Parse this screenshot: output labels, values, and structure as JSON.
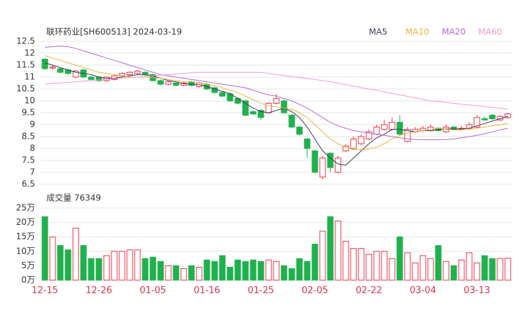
{
  "chart_data": [
    {
      "type": "candlestick",
      "title": "联环药业[SH600513] 2024-03-19",
      "up_color": "#e8334a",
      "down_color": "#1fb14d",
      "open": [
        11.75,
        11.38,
        11.35,
        11.3,
        11.0,
        11.3,
        11.0,
        11.0,
        10.85,
        10.9,
        11.05,
        11.1,
        11.15,
        11.2,
        11.1,
        10.85,
        10.7,
        10.75,
        10.65,
        10.8,
        10.6,
        10.7,
        10.55,
        10.35,
        10.3,
        10.1,
        10.0,
        9.55,
        9.6,
        9.5,
        9.9,
        10.0,
        9.4,
        8.9,
        8.4,
        7.9,
        6.8,
        7.8,
        7.0,
        7.9,
        8.0,
        8.2,
        8.4,
        8.6,
        8.8,
        8.8,
        9.1,
        8.3,
        8.7,
        8.75,
        8.75,
        8.85,
        8.7,
        8.9,
        8.8,
        8.85,
        8.9,
        9.25,
        9.4,
        9.2,
        9.3
      ],
      "high": [
        11.8,
        11.5,
        11.4,
        11.35,
        11.3,
        11.35,
        11.05,
        11.05,
        11.0,
        11.1,
        11.2,
        11.25,
        11.3,
        11.25,
        11.15,
        10.9,
        10.85,
        10.8,
        10.8,
        10.85,
        10.8,
        10.75,
        10.6,
        10.4,
        10.35,
        10.15,
        10.05,
        9.6,
        9.65,
        9.95,
        10.3,
        10.05,
        9.45,
        8.95,
        8.45,
        7.95,
        7.7,
        7.85,
        7.7,
        8.2,
        8.5,
        8.6,
        8.8,
        9.0,
        9.2,
        9.3,
        9.4,
        8.9,
        8.9,
        8.95,
        9.0,
        8.9,
        9.0,
        8.95,
        8.95,
        9.1,
        9.4,
        9.35,
        9.45,
        9.4,
        9.5
      ],
      "low": [
        11.3,
        11.3,
        11.15,
        11.1,
        10.95,
        10.95,
        10.85,
        10.8,
        10.8,
        10.85,
        11.0,
        11.05,
        11.1,
        11.05,
        10.8,
        10.65,
        10.65,
        10.6,
        10.6,
        10.6,
        10.55,
        10.45,
        10.3,
        10.15,
        9.95,
        9.85,
        9.35,
        9.4,
        9.2,
        9.45,
        9.85,
        9.45,
        8.85,
        8.55,
        7.6,
        6.95,
        6.7,
        7.0,
        6.95,
        7.85,
        7.95,
        8.15,
        8.35,
        8.55,
        8.75,
        8.75,
        8.55,
        8.25,
        8.65,
        8.7,
        8.7,
        8.7,
        8.65,
        8.75,
        8.75,
        8.8,
        8.85,
        9.15,
        9.2,
        9.15,
        9.25
      ],
      "close": [
        11.35,
        11.42,
        11.2,
        11.15,
        11.25,
        11.0,
        10.9,
        10.85,
        11.0,
        11.05,
        11.15,
        11.2,
        11.25,
        11.1,
        10.85,
        10.7,
        10.8,
        10.65,
        10.75,
        10.65,
        10.75,
        10.5,
        10.35,
        10.2,
        10.0,
        9.9,
        9.4,
        9.45,
        9.3,
        9.9,
        10.1,
        9.5,
        8.9,
        8.6,
        8.0,
        7.0,
        7.6,
        7.2,
        7.6,
        8.1,
        8.4,
        8.5,
        8.7,
        8.9,
        9.0,
        9.1,
        8.6,
        8.8,
        8.8,
        8.85,
        8.9,
        8.75,
        8.9,
        8.8,
        8.85,
        9.0,
        9.3,
        9.2,
        9.25,
        9.35,
        9.45
      ],
      "series": [
        {
          "name": "MA5",
          "color": "#3c3c5c",
          "values": [
            11.6,
            11.5,
            11.4,
            11.3,
            11.2,
            11.15,
            11.1,
            11.0,
            10.95,
            10.95,
            11.0,
            11.05,
            11.1,
            11.1,
            11.05,
            10.95,
            10.85,
            10.8,
            10.72,
            10.7,
            10.68,
            10.6,
            10.5,
            10.4,
            10.3,
            10.1,
            9.9,
            9.7,
            9.55,
            9.5,
            9.6,
            9.7,
            9.55,
            9.3,
            8.9,
            8.4,
            7.9,
            7.6,
            7.35,
            7.3,
            7.6,
            7.9,
            8.2,
            8.45,
            8.6,
            8.8,
            8.8,
            8.75,
            8.7,
            8.75,
            8.75,
            8.8,
            8.82,
            8.82,
            8.83,
            8.85,
            8.95,
            9.05,
            9.15,
            9.25,
            9.35
          ]
        },
        {
          "name": "MA10",
          "color": "#f0b43c",
          "values": [
            11.9,
            11.8,
            11.7,
            11.6,
            11.5,
            11.4,
            11.3,
            11.2,
            11.15,
            11.1,
            11.05,
            11.0,
            11.0,
            11.0,
            10.98,
            10.95,
            10.9,
            10.85,
            10.82,
            10.8,
            10.75,
            10.7,
            10.65,
            10.55,
            10.45,
            10.35,
            10.2,
            10.05,
            9.9,
            9.8,
            9.75,
            9.7,
            9.65,
            9.5,
            9.3,
            9.0,
            8.7,
            8.4,
            8.2,
            8.05,
            7.95,
            7.95,
            7.98,
            8.05,
            8.2,
            8.4,
            8.55,
            8.65,
            8.7,
            8.75,
            8.8,
            8.85,
            8.8,
            8.78,
            8.78,
            8.8,
            8.85,
            8.9,
            8.95,
            9.0,
            9.05
          ]
        },
        {
          "name": "MA20",
          "color": "#b068d8",
          "values": [
            12.25,
            12.28,
            12.3,
            12.28,
            12.2,
            12.1,
            12.0,
            11.9,
            11.8,
            11.7,
            11.6,
            11.5,
            11.4,
            11.3,
            11.2,
            11.1,
            11.05,
            11.0,
            10.95,
            10.9,
            10.85,
            10.8,
            10.75,
            10.7,
            10.65,
            10.6,
            10.55,
            10.45,
            10.35,
            10.25,
            10.2,
            10.1,
            10.0,
            9.85,
            9.7,
            9.5,
            9.3,
            9.1,
            8.95,
            8.85,
            8.75,
            8.7,
            8.65,
            8.6,
            8.55,
            8.5,
            8.45,
            8.4,
            8.38,
            8.37,
            8.37,
            8.37,
            8.38,
            8.4,
            8.45,
            8.5,
            8.55,
            8.62,
            8.7,
            8.78,
            8.85
          ]
        },
        {
          "name": "MA60",
          "color": "#f29ad0",
          "values": [
            10.7,
            10.73,
            10.75,
            10.78,
            10.8,
            10.83,
            10.85,
            10.88,
            10.9,
            10.93,
            10.95,
            10.98,
            11.0,
            11.03,
            11.05,
            11.08,
            11.1,
            11.13,
            11.15,
            11.18,
            11.2,
            11.2,
            11.2,
            11.2,
            11.2,
            11.2,
            11.2,
            11.2,
            11.2,
            11.15,
            11.1,
            11.06,
            11.02,
            10.98,
            10.94,
            10.9,
            10.85,
            10.8,
            10.74,
            10.68,
            10.62,
            10.56,
            10.5,
            10.44,
            10.38,
            10.31,
            10.25,
            10.19,
            10.13,
            10.06,
            10.0,
            9.97,
            9.93,
            9.9,
            9.86,
            9.83,
            9.79,
            9.76,
            9.72,
            9.69,
            9.65
          ]
        }
      ],
      "ylim": [
        6.5,
        12.5
      ],
      "yticks": [
        6.5,
        7,
        7.5,
        8,
        8.5,
        9,
        9.5,
        10,
        10.5,
        11,
        11.5,
        12,
        12.5
      ],
      "grid": true
    },
    {
      "type": "bar",
      "title": "成交量 76349",
      "categories": [
        "12-15",
        null,
        null,
        null,
        null,
        null,
        null,
        "12-26",
        null,
        null,
        null,
        null,
        null,
        null,
        "01-05",
        null,
        null,
        null,
        null,
        null,
        null,
        "01-16",
        null,
        null,
        null,
        null,
        null,
        null,
        "01-25",
        null,
        null,
        null,
        null,
        null,
        null,
        "02-05",
        null,
        null,
        null,
        null,
        null,
        null,
        "02-22",
        null,
        null,
        null,
        null,
        null,
        null,
        "03-04",
        null,
        null,
        null,
        null,
        null,
        null,
        "03-13",
        null,
        null,
        null,
        null
      ],
      "values": [
        22,
        15,
        12,
        10.5,
        18,
        12,
        7.5,
        7.5,
        8.5,
        10,
        10,
        10.5,
        10.5,
        7.5,
        8,
        6.5,
        5,
        5,
        4,
        5,
        4.5,
        7,
        6.5,
        8.5,
        4.5,
        7,
        6.5,
        7,
        6.5,
        7,
        6.5,
        5,
        4,
        7.5,
        6.5,
        12.5,
        17,
        22,
        20.5,
        13.5,
        11,
        11,
        9,
        10,
        10,
        7.5,
        15,
        9.5,
        6,
        8.5,
        7.5,
        12,
        6.5,
        5,
        7,
        9.5,
        6,
        8.5,
        7.5,
        7.5,
        7.63
      ],
      "ylim": [
        0,
        25
      ],
      "yticks": [
        {
          "value": 0,
          "label": "0万"
        },
        {
          "value": 5,
          "label": "5万"
        },
        {
          "value": 10,
          "label": "10万"
        },
        {
          "value": 15,
          "label": "15万"
        },
        {
          "value": 20,
          "label": "20万"
        },
        {
          "value": 25,
          "label": "25万"
        }
      ],
      "grid": true
    }
  ]
}
